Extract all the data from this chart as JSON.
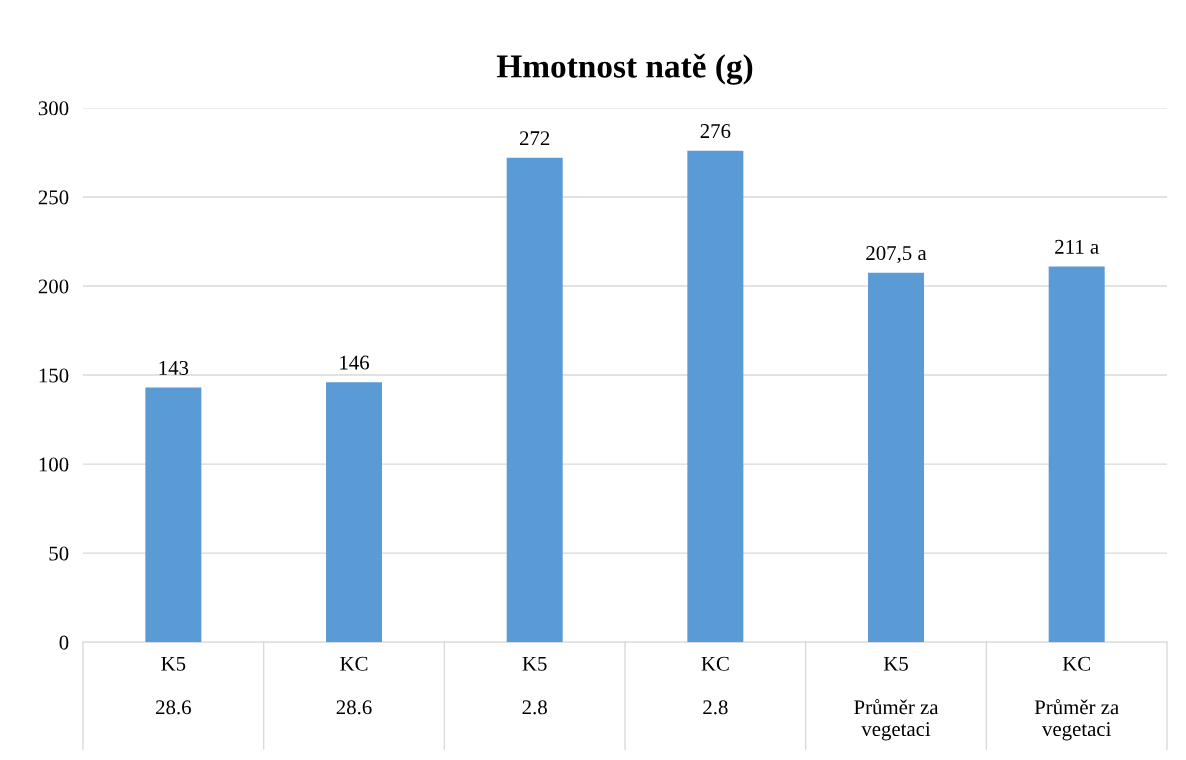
{
  "chart_data": {
    "type": "bar",
    "title": "Hmotnost natě (g)",
    "categories": [
      "K5\n\n28.6",
      "KC\n\n28.6",
      "K5\n\n2.8",
      "KC\n\n2.8",
      "K5\n\nPrůměr za\nvegetaci",
      "KC\n\nPrůměr za\nvegetaci"
    ],
    "values": [
      143,
      146,
      272,
      276,
      207.5,
      211
    ],
    "value_labels": [
      "143",
      "146",
      "272",
      "276",
      "207,5 a",
      "211 a"
    ],
    "color": "#5b9bd5",
    "ylim": [
      0,
      300
    ],
    "yticks": [
      0,
      50,
      100,
      150,
      200,
      250,
      300
    ],
    "grid": "y"
  }
}
